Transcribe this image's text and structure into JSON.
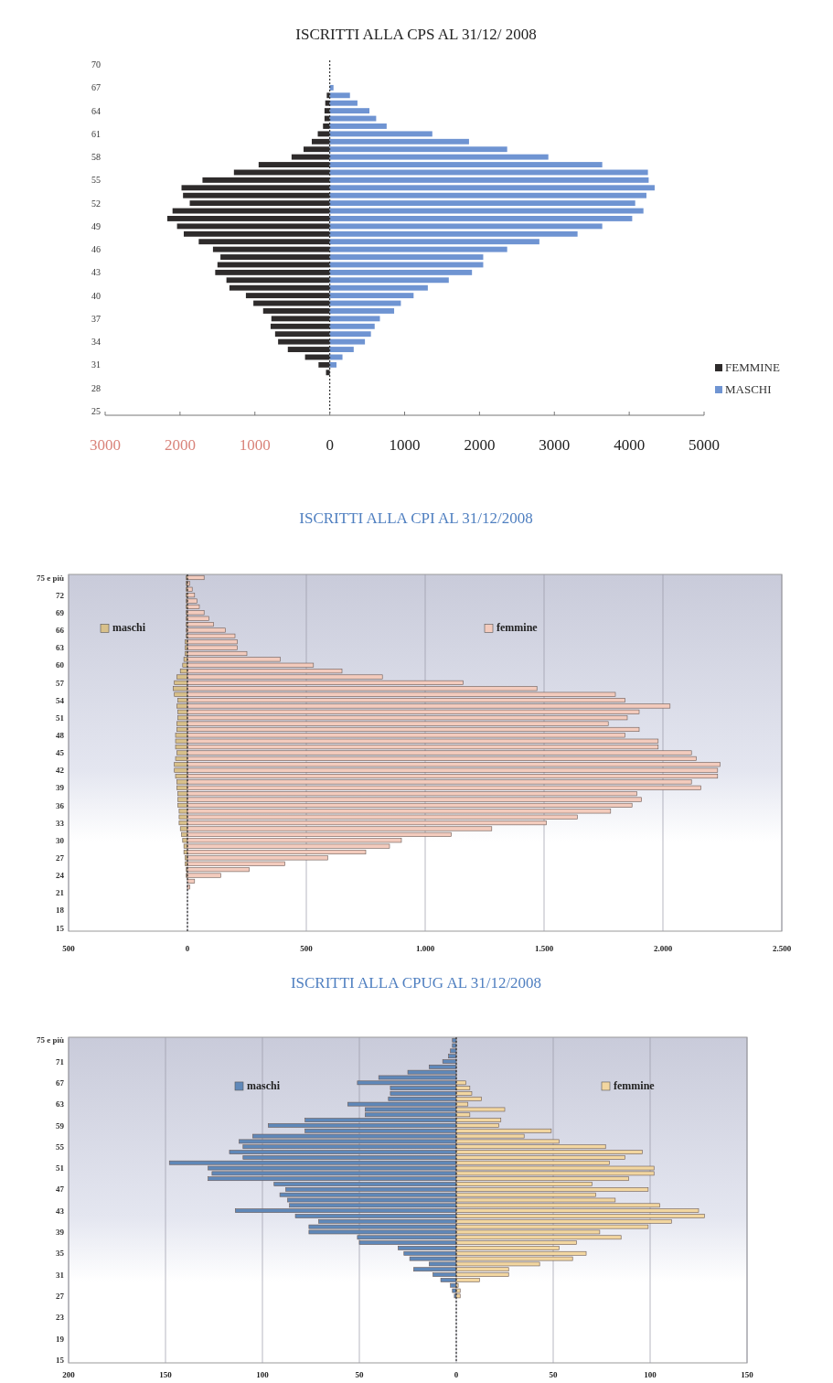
{
  "chart_data": [
    {
      "type": "bar",
      "orientation": "horizontal",
      "stacked": true,
      "title": "ISCRITTI ALLA CPS AL 31/12/ 2008",
      "categories": [
        "70",
        null,
        null,
        "67",
        null,
        null,
        "64",
        null,
        null,
        "61",
        null,
        null,
        "58",
        null,
        null,
        "55",
        null,
        null,
        "52",
        null,
        null,
        "49",
        null,
        null,
        "46",
        null,
        null,
        "43",
        null,
        null,
        "40",
        null,
        null,
        "37",
        null,
        null,
        "34",
        null,
        null,
        "31",
        null,
        null,
        "28",
        null,
        null,
        "25"
      ],
      "series": [
        {
          "name": "FEMMINE",
          "color": "#2e2b2b",
          "values": [
            0,
            0,
            0,
            0,
            -40,
            -60,
            -70,
            -70,
            -90,
            -160,
            -240,
            -350,
            -510,
            -950,
            -1280,
            -1700,
            -1980,
            -1960,
            -1870,
            -2100,
            -2170,
            -2040,
            -1950,
            -1750,
            -1560,
            -1460,
            -1500,
            -1530,
            -1380,
            -1340,
            -1120,
            -1020,
            -890,
            -780,
            -790,
            -730,
            -690,
            -560,
            -330,
            -150,
            -50,
            0,
            0,
            0,
            0,
            0
          ]
        },
        {
          "name": "MASCHI",
          "color": "#6f94d2",
          "values": [
            0,
            0,
            0,
            50,
            270,
            370,
            530,
            620,
            760,
            1370,
            1860,
            2370,
            2920,
            3640,
            4250,
            4260,
            4340,
            4230,
            4080,
            4190,
            4040,
            3640,
            3310,
            2800,
            2370,
            2050,
            2050,
            1900,
            1590,
            1310,
            1120,
            950,
            860,
            670,
            600,
            550,
            470,
            320,
            170,
            90,
            0,
            0,
            0,
            0,
            0,
            0
          ]
        }
      ],
      "xlim": [
        -3000,
        5000
      ],
      "xticks": [
        {
          "value": -3000,
          "label": "3000"
        },
        {
          "value": -2000,
          "label": "2000"
        },
        {
          "value": -1000,
          "label": "1000"
        },
        0,
        1000,
        2000,
        3000,
        4000,
        5000
      ],
      "legend": "bottom right"
    },
    {
      "type": "bar",
      "orientation": "horizontal",
      "stacked": true,
      "title": "ISCRITTI ALLA CPI AL 31/12/2008",
      "categories": [
        "75 e più",
        null,
        null,
        "72",
        null,
        null,
        "69",
        null,
        null,
        "66",
        null,
        null,
        "63",
        null,
        null,
        "60",
        null,
        null,
        "57",
        null,
        null,
        "54",
        null,
        null,
        "51",
        null,
        null,
        "48",
        null,
        null,
        "45",
        null,
        null,
        "42",
        null,
        null,
        "39",
        null,
        null,
        "36",
        null,
        null,
        "33",
        null,
        null,
        "30",
        null,
        null,
        "27",
        null,
        null,
        "24",
        null,
        null,
        "21",
        null,
        null,
        "18",
        null,
        null,
        "15"
      ],
      "series": [
        {
          "name": "maschi",
          "color": "#d8c08a",
          "values": [
            -5,
            -5,
            -5,
            -5,
            -5,
            -5,
            -5,
            -5,
            -5,
            -5,
            -5,
            -10,
            -10,
            -10,
            -15,
            -20,
            -30,
            -45,
            -55,
            -60,
            -55,
            -40,
            -45,
            -40,
            -40,
            -45,
            -45,
            -50,
            -50,
            -50,
            -45,
            -50,
            -55,
            -55,
            -50,
            -45,
            -45,
            -40,
            -40,
            -40,
            -35,
            -35,
            -35,
            -30,
            -25,
            -20,
            -15,
            -15,
            -10,
            -10,
            -5,
            -5,
            0,
            0,
            0,
            0,
            0,
            0,
            0,
            0,
            0
          ]
        },
        {
          "name": "femmine",
          "color": "#f3cbbd",
          "values": [
            70,
            10,
            20,
            30,
            40,
            50,
            70,
            90,
            110,
            160,
            200,
            210,
            210,
            250,
            390,
            530,
            650,
            820,
            1160,
            1470,
            1800,
            1840,
            2030,
            1900,
            1850,
            1770,
            1900,
            1840,
            1980,
            1980,
            2120,
            2140,
            2240,
            2230,
            2230,
            2120,
            2160,
            1890,
            1910,
            1870,
            1780,
            1640,
            1510,
            1280,
            1110,
            900,
            850,
            750,
            590,
            410,
            260,
            140,
            30,
            10,
            0,
            0,
            0,
            0,
            0,
            0,
            0
          ]
        }
      ],
      "legend": "top",
      "xlim": [
        -500,
        2500
      ],
      "xticks": [
        {
          "value": -500,
          "label": "500"
        },
        0,
        500,
        {
          "value": 1000,
          "label": "1.000"
        },
        {
          "value": 1500,
          "label": "1.500"
        },
        {
          "value": 2000,
          "label": "2.000"
        },
        {
          "value": 2500,
          "label": "2.500"
        }
      ],
      "grid": "x"
    },
    {
      "type": "bar",
      "orientation": "horizontal",
      "stacked": true,
      "title": "ISCRITTI ALLA CPUG AL 31/12/2008",
      "categories": [
        "75 e più",
        null,
        null,
        null,
        "71",
        null,
        null,
        null,
        "67",
        null,
        null,
        null,
        "63",
        null,
        null,
        null,
        "59",
        null,
        null,
        null,
        "55",
        null,
        null,
        null,
        "51",
        null,
        null,
        null,
        "47",
        null,
        null,
        null,
        "43",
        null,
        null,
        null,
        "39",
        null,
        null,
        null,
        "35",
        null,
        null,
        null,
        "31",
        null,
        null,
        null,
        "27",
        null,
        null,
        null,
        "23",
        null,
        null,
        null,
        "19",
        null,
        null,
        null,
        "15"
      ],
      "series": [
        {
          "name": "maschi",
          "color": "#5f88b9",
          "values": [
            -2,
            -2,
            -3,
            -4,
            -7,
            -14,
            -25,
            -40,
            -51,
            -34,
            -34,
            -35,
            -56,
            -47,
            -47,
            -78,
            -97,
            -78,
            -105,
            -112,
            -110,
            -117,
            -110,
            -148,
            -128,
            -126,
            -128,
            -94,
            -88,
            -91,
            -87,
            -86,
            -114,
            -83,
            -71,
            -76,
            -76,
            -51,
            -50,
            -30,
            -27,
            -24,
            -14,
            -22,
            -12,
            -8,
            -3,
            -2,
            -1,
            0,
            0,
            0,
            0,
            0,
            0,
            0,
            0,
            0,
            0,
            0,
            0
          ]
        },
        {
          "name": "femmine",
          "color": "#f2d6a0",
          "values": [
            0,
            0,
            0,
            0,
            0,
            0,
            0,
            0,
            5,
            7,
            8,
            13,
            6,
            25,
            7,
            23,
            22,
            49,
            35,
            53,
            77,
            96,
            87,
            79,
            102,
            102,
            89,
            70,
            99,
            72,
            82,
            105,
            125,
            128,
            111,
            99,
            74,
            85,
            62,
            53,
            67,
            60,
            43,
            27,
            27,
            12,
            1,
            2,
            2,
            0,
            0,
            0,
            0,
            0,
            0,
            0,
            0,
            0,
            0,
            0,
            0
          ]
        }
      ],
      "legend": "top",
      "xlim": [
        -200,
        150
      ],
      "xticks": [
        {
          "value": -200,
          "label": "200"
        },
        {
          "value": -150,
          "label": "150"
        },
        {
          "value": -100,
          "label": "100"
        },
        {
          "value": -50,
          "label": "50"
        },
        0,
        50,
        100,
        150
      ],
      "grid": "x"
    }
  ]
}
